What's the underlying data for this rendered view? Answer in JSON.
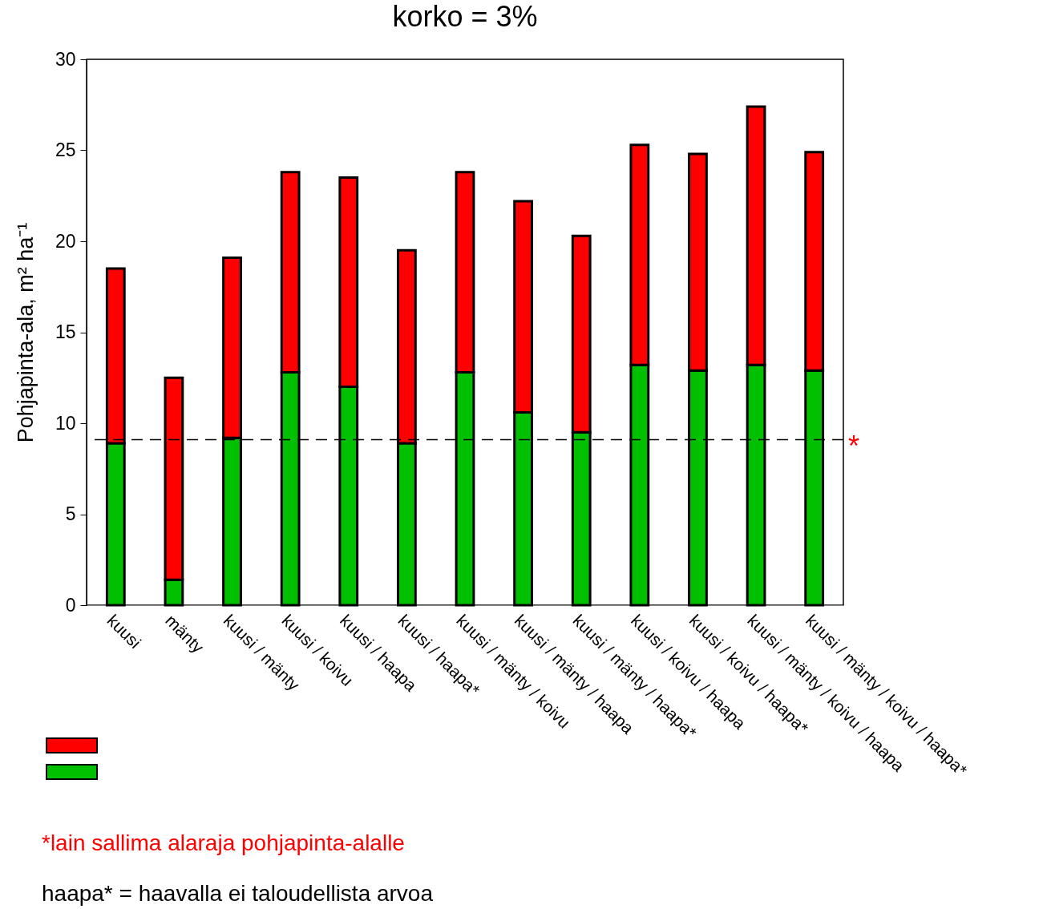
{
  "chart_data": {
    "type": "bar",
    "title": "korko = 3%",
    "ylabel": "Pohjapinta-ala, m² ha⁻¹",
    "categories": [
      "kuusi",
      "mänty",
      "kuusi / mänty",
      "kuusi / koivu",
      "kuusi / haapa",
      "kuusi / haapa*",
      "kuusi / mänty / koivu",
      "kuusi / mänty / haapa",
      "kuusi / mänty / haapa*",
      "kuusi / koivu / haapa",
      "kuusi / koivu / haapa*",
      "kuusi / mänty / koivu / haapa",
      "kuusi / mänty / koivu / haapa*"
    ],
    "stacked": true,
    "series": [
      {
        "color": "#00c000",
        "values": [
          8.9,
          1.4,
          9.2,
          12.8,
          12.0,
          8.9,
          12.8,
          10.6,
          9.5,
          13.2,
          12.9,
          13.2,
          12.9
        ]
      },
      {
        "color": "#ff0000",
        "values": [
          9.6,
          11.1,
          9.9,
          11.0,
          11.5,
          10.6,
          11.0,
          11.6,
          10.8,
          12.1,
          11.9,
          14.2,
          12.0
        ]
      }
    ],
    "ylim": [
      0,
      30
    ],
    "yticks": [
      0,
      5,
      10,
      15,
      20,
      25,
      30
    ],
    "ref_lines": [
      {
        "axis": "y",
        "value": 9.1,
        "label": "*",
        "color": "#000000",
        "line_style": "dashed"
      }
    ],
    "annotations": [
      "*lain sallima alaraja pohjapinta-alalle",
      "haapa* = haavalla ei taloudellista arvoa"
    ]
  }
}
